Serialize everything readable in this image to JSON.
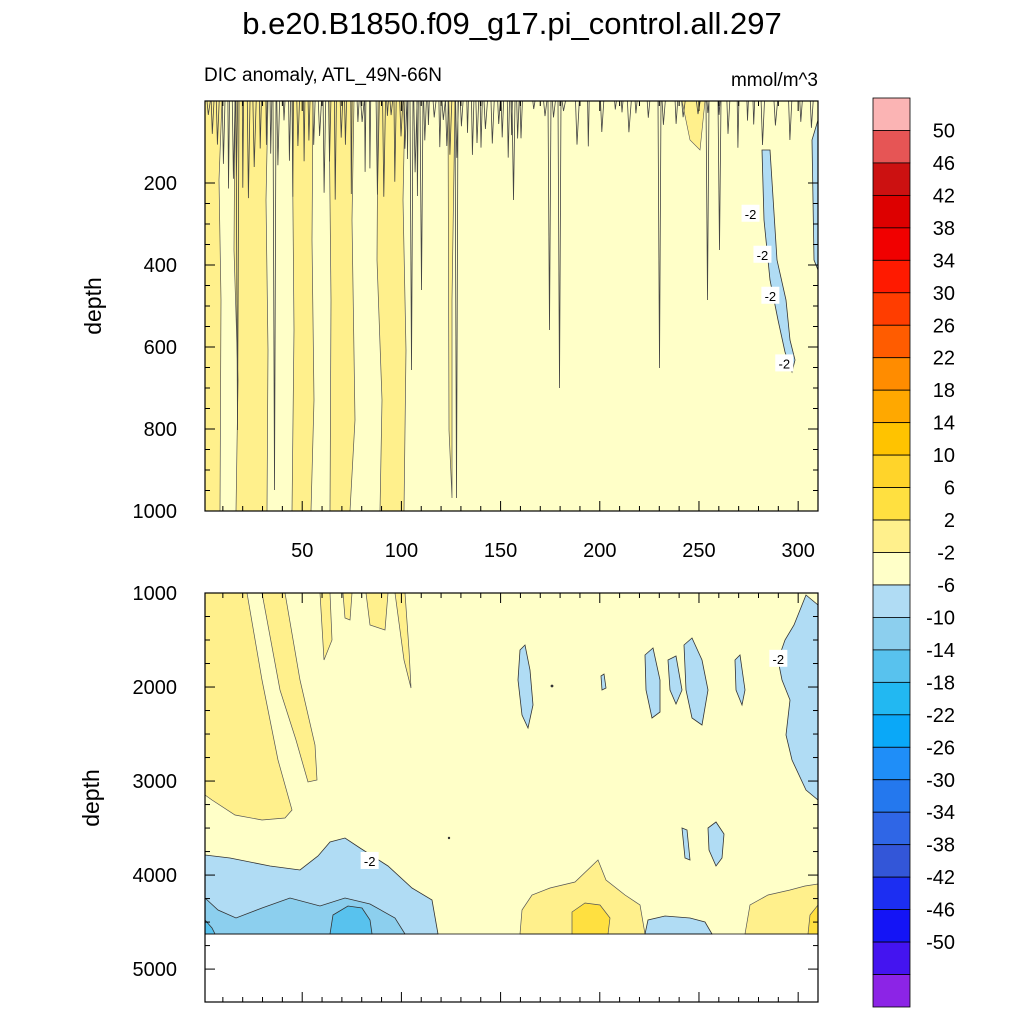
{
  "figure": {
    "title": "b.e20.B1850.f09_g17.pi_control.all.297"
  },
  "chart_data": [
    {
      "type": "heatmap",
      "panel": "upper",
      "title": "DIC anomaly, ATL_49N-66N",
      "units": "mmol/m^3",
      "xlabel": "",
      "ylabel": "depth",
      "xlim": [
        1,
        310
      ],
      "ylim": [
        1000,
        0
      ],
      "xticks": [
        50,
        100,
        150,
        200,
        250,
        300
      ],
      "yticks": [
        200,
        400,
        600,
        800,
        1000
      ],
      "background_level": "-2 to 2",
      "contour_labels": [
        {
          "text": "-2",
          "x": 276,
          "y": 275
        },
        {
          "text": "-2",
          "x": 282,
          "y": 375
        },
        {
          "text": "-2",
          "x": 286,
          "y": 475
        },
        {
          "text": "-2",
          "x": 293,
          "y": 640
        }
      ],
      "regions": [
        {
          "level": "2 to 6",
          "x": [
            1,
            8
          ],
          "y": [
            0,
            1000
          ]
        },
        {
          "level": "2 to 6",
          "x": [
            15,
            33
          ],
          "y": [
            0,
            1000
          ]
        },
        {
          "level": "2 to 6",
          "x": [
            45,
            55
          ],
          "y": [
            0,
            1000
          ]
        },
        {
          "level": "2 to 6",
          "x": [
            63,
            75
          ],
          "y": [
            0,
            1000
          ]
        },
        {
          "level": "2 to 6",
          "x": [
            88,
            101
          ],
          "y": [
            0,
            1000
          ]
        },
        {
          "level": "2 to 6",
          "x": [
            124,
            125
          ],
          "y": [
            0,
            1000
          ]
        },
        {
          "level": "-6 to -2",
          "x": [
            280,
            292
          ],
          "y": [
            150,
            620
          ]
        },
        {
          "level": "-6 to -2",
          "x": [
            306,
            310
          ],
          "y": [
            80,
            400
          ]
        }
      ]
    },
    {
      "type": "heatmap",
      "panel": "lower",
      "title": "",
      "units": "mmol/m^3",
      "xlabel": "",
      "ylabel": "depth",
      "xlim": [
        1,
        310
      ],
      "ylim": [
        5350,
        1000
      ],
      "yticks": [
        1000,
        2000,
        3000,
        4000,
        5000
      ],
      "data_bottom": 4630,
      "background_level": "-2 to 2",
      "contour_labels": [
        {
          "text": "-2",
          "x": 84,
          "y": 3850
        },
        {
          "text": "-2",
          "x": 290,
          "y": 1700
        }
      ],
      "regions": [
        {
          "level": "2 to 6",
          "x": [
            1,
            55
          ],
          "y": [
            1000,
            3400
          ]
        },
        {
          "level": "2 to 6",
          "x": [
            60,
            75
          ],
          "y": [
            1000,
            1900
          ]
        },
        {
          "level": "2 to 6",
          "x": [
            82,
            103
          ],
          "y": [
            1000,
            2100
          ]
        },
        {
          "level": "-6 to -2",
          "x": [
            1,
            115
          ],
          "y": [
            3650,
            4630
          ]
        },
        {
          "level": "-10 to -6",
          "x": [
            1,
            95
          ],
          "y": [
            4200,
            4630
          ]
        },
        {
          "level": "-14 to -10",
          "x": [
            60,
            85
          ],
          "y": [
            4400,
            4630
          ]
        },
        {
          "level": "-6 to -2",
          "x": [
            158,
            165
          ],
          "y": [
            1600,
            2400
          ]
        },
        {
          "level": "-6 to -2",
          "x": [
            222,
            268
          ],
          "y": [
            1450,
            2300
          ]
        },
        {
          "level": "-6 to -2",
          "x": [
            235,
            260
          ],
          "y": [
            3450,
            3900
          ]
        },
        {
          "level": "-6 to -2",
          "x": [
            288,
            310
          ],
          "y": [
            1000,
            2900
          ]
        },
        {
          "level": "-6 to -2",
          "x": [
            200,
            250
          ],
          "y": [
            4420,
            4630
          ]
        },
        {
          "level": "2 to 6",
          "x": [
            160,
            220
          ],
          "y": [
            3850,
            4630
          ]
        },
        {
          "level": "6 to 10",
          "x": [
            185,
            200
          ],
          "y": [
            4250,
            4630
          ]
        },
        {
          "level": "2 to 6",
          "x": [
            272,
            310
          ],
          "y": [
            4150,
            4630
          ]
        },
        {
          "level": "6 to 10",
          "x": [
            306,
            310
          ],
          "y": [
            4350,
            4630
          ]
        }
      ]
    }
  ],
  "colorbar": {
    "labels": [
      "50",
      "46",
      "42",
      "38",
      "34",
      "30",
      "26",
      "22",
      "18",
      "14",
      "10",
      "6",
      "2",
      "-2",
      "-6",
      "-10",
      "-14",
      "-18",
      "-22",
      "-26",
      "-30",
      "-34",
      "-38",
      "-42",
      "-46",
      "-50"
    ],
    "colors": [
      "#fbb4b4",
      "#e65555",
      "#cc1111",
      "#dd0000",
      "#f10000",
      "#ff1a00",
      "#ff3d00",
      "#ff5c00",
      "#ff8c00",
      "#ffa800",
      "#ffc300",
      "#ffd42a",
      "#ffe040",
      "#fff08c",
      "#ffffc8",
      "#b0dcf4",
      "#8ccfee",
      "#58c2ee",
      "#22b8f2",
      "#0aa8f8",
      "#1f8ef8",
      "#2478ee",
      "#2f66e6",
      "#3356d8",
      "#1c2ef2",
      "#1414f6",
      "#4414f0",
      "#8c24e6"
    ]
  }
}
